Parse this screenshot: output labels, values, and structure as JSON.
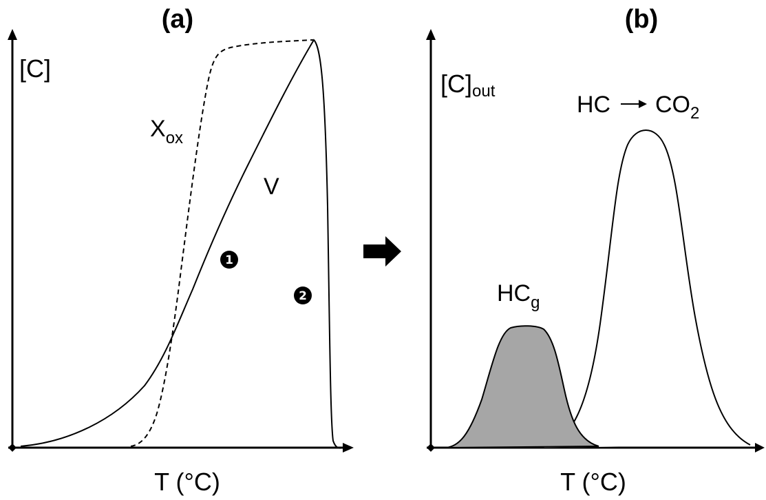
{
  "panel_a": {
    "title": "(a)",
    "y_axis_label": "[C]",
    "x_axis_label": "T (°C)",
    "curve_xox": {
      "main": "X",
      "sub": "ox",
      "style": "dashed"
    },
    "curve_v": {
      "label": "V",
      "style": "solid"
    },
    "markers": [
      {
        "label": "1"
      },
      {
        "label": "2"
      }
    ]
  },
  "transition_arrow": "right-arrow",
  "panel_b": {
    "title": "(b)",
    "y_axis_label": {
      "main": "[C]",
      "sub": "out"
    },
    "x_axis_label": "T (°C)",
    "peak_hcg": {
      "main": "HC",
      "sub": "g",
      "fill": "#a6a6a6"
    },
    "peak_conversion": {
      "from": "HC",
      "to_main": "CO",
      "to_sub": "2",
      "fill": "#ffffff"
    }
  },
  "colors": {
    "line": "#000000",
    "shaded_peak": "#a6a6a6",
    "background": "#ffffff"
  }
}
